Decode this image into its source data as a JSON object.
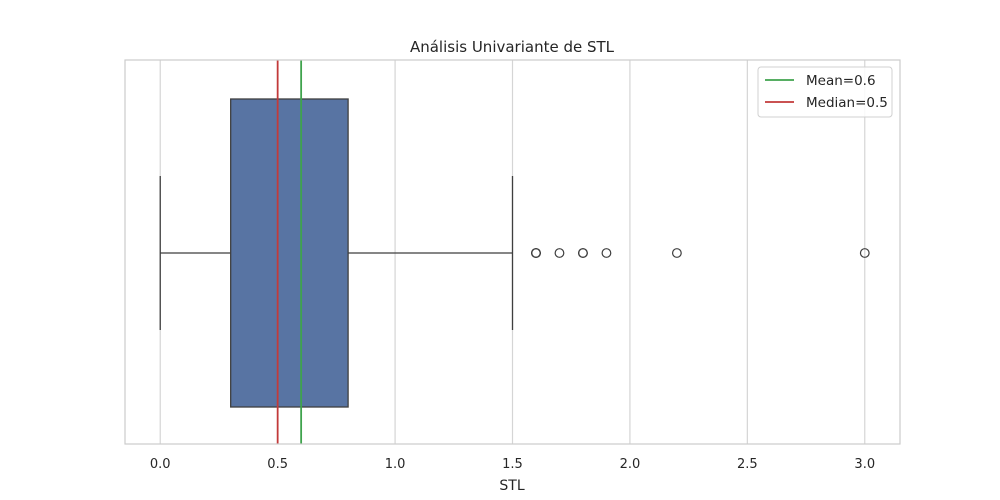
{
  "chart_data": {
    "type": "box",
    "title": "Análisis Univariante de STL",
    "xlabel": "STL",
    "ylabel": "",
    "orientation": "horizontal",
    "xlim": [
      -0.15,
      3.15
    ],
    "xticks": [
      0.0,
      0.5,
      1.0,
      1.5,
      2.0,
      2.5,
      3.0
    ],
    "xtick_labels": [
      "0.0",
      "0.5",
      "1.0",
      "1.5",
      "2.0",
      "2.5",
      "3.0"
    ],
    "grid": "vertical",
    "box": {
      "whisker_low": 0.0,
      "q1": 0.3,
      "median": 0.5,
      "q3": 0.8,
      "whisker_high": 1.5,
      "fill_color": "#5874a3",
      "edge_color": "#3f3f3f"
    },
    "outliers": [
      1.6,
      1.6,
      1.6,
      1.7,
      1.8,
      1.8,
      1.9,
      2.2,
      3.0
    ],
    "reference_lines": [
      {
        "label": "Mean=0.6",
        "value": 0.6,
        "color": "#3fa34d"
      },
      {
        "label": "Median=0.5",
        "value": 0.5,
        "color": "#c23a3a"
      }
    ],
    "legend_position": "top-right"
  }
}
